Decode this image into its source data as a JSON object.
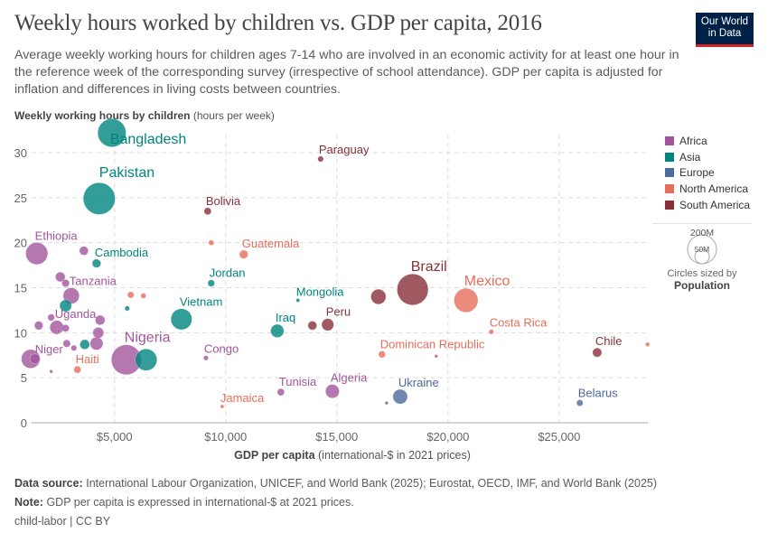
{
  "header": {
    "title": "Weekly hours worked by children vs. GDP per capita, 2016",
    "subtitle": "Average weekly working hours for children ages 7-14 who are involved in an economic activity for at least one hour in the reference week of the corresponding survey (irrespective of school attendance). GDP per capita is adjusted for inflation and differences in living costs between countries.",
    "logo_line1": "Our World",
    "logo_line2": "in Data"
  },
  "footer": {
    "source_label": "Data source:",
    "source_text": "International Labour Organization, UNICEF, and World Bank (2025); Eurostat, OECD, IMF, and World Bank (2025)",
    "note_label": "Note:",
    "note_text": "GDP per capita is expressed in international-$ at 2021 prices.",
    "credit": "child-labor | CC BY"
  },
  "size_legend": {
    "large": "200M",
    "small": "50M",
    "caption": "Circles sized by",
    "variable": "Population"
  },
  "chart_data": {
    "type": "scatter",
    "title": "Weekly hours worked by children vs. GDP per capita, 2016",
    "ylabel_bold": "Weekly working hours by children",
    "ylabel_unit": "(hours per week)",
    "xlabel_bold": "GDP per capita",
    "xlabel_unit": "(international-$ in 2021 prices)",
    "xlim": [
      1270,
      28990
    ],
    "ylim": [
      0,
      30
    ],
    "x_log": false,
    "grid": true,
    "xticks": [
      {
        "v": 5000,
        "label": "$5,000"
      },
      {
        "v": 10000,
        "label": "$10,000"
      },
      {
        "v": 15000,
        "label": "$15,000"
      },
      {
        "v": 20000,
        "label": "$20,000"
      },
      {
        "v": 25000,
        "label": "$25,000"
      }
    ],
    "yticks": [
      {
        "v": 0,
        "label": "0"
      },
      {
        "v": 5,
        "label": "5"
      },
      {
        "v": 10,
        "label": "10"
      },
      {
        "v": 15,
        "label": "15"
      },
      {
        "v": 20,
        "label": "20"
      },
      {
        "v": 25,
        "label": "25"
      },
      {
        "v": 30,
        "label": "30"
      }
    ],
    "legend_position": "right",
    "regions": [
      {
        "name": "Africa",
        "color": "#a2559c"
      },
      {
        "name": "Asia",
        "color": "#00847e"
      },
      {
        "name": "Europe",
        "color": "#4c6a9c"
      },
      {
        "name": "North America",
        "color": "#e56e5a"
      },
      {
        "name": "South America",
        "color": "#883039"
      }
    ],
    "points": [
      {
        "label": "Bangladesh",
        "region": "Asia",
        "x": 4880,
        "y": 32.2,
        "pop": 170
      },
      {
        "label": "Pakistan",
        "region": "Asia",
        "x": 4310,
        "y": 24.9,
        "pop": 215
      },
      {
        "label": "Bolivia",
        "region": "South America",
        "x": 9190,
        "y": 23.5,
        "pop": 11
      },
      {
        "label": "Paraguay",
        "region": "South America",
        "x": 14270,
        "y": 29.3,
        "pop": 7
      },
      {
        "label": "Ethiopia",
        "region": "Africa",
        "x": 1500,
        "y": 18.8,
        "pop": 103
      },
      {
        "label": "Guatemala",
        "region": "North America",
        "x": 10810,
        "y": 18.7,
        "pop": 16
      },
      {
        "label": "",
        "region": "North America",
        "x": 9350,
        "y": 20.0,
        "pop": 6
      },
      {
        "label": "Cambodia",
        "region": "Asia",
        "x": 4190,
        "y": 17.7,
        "pop": 16
      },
      {
        "label": "",
        "region": "Africa",
        "x": 3620,
        "y": 19.1,
        "pop": 17
      },
      {
        "label": "Jordan",
        "region": "Asia",
        "x": 9350,
        "y": 15.5,
        "pop": 10
      },
      {
        "label": "Mongolia",
        "region": "Asia",
        "x": 13250,
        "y": 13.6,
        "pop": 3
      },
      {
        "label": "Tanzania",
        "region": "Africa",
        "x": 3050,
        "y": 14.1,
        "pop": 55
      },
      {
        "label": "",
        "region": "Africa",
        "x": 2560,
        "y": 16.2,
        "pop": 20
      },
      {
        "label": "",
        "region": "Africa",
        "x": 2800,
        "y": 15.5,
        "pop": 12
      },
      {
        "label": "",
        "region": "Asia",
        "x": 2800,
        "y": 13.0,
        "pop": 30
      },
      {
        "label": "",
        "region": "North America",
        "x": 5730,
        "y": 14.2,
        "pop": 9
      },
      {
        "label": "",
        "region": "North America",
        "x": 6300,
        "y": 14.1,
        "pop": 6
      },
      {
        "label": "",
        "region": "Asia",
        "x": 5570,
        "y": 12.7,
        "pop": 5
      },
      {
        "label": "Vietnam",
        "region": "Asia",
        "x": 8010,
        "y": 11.5,
        "pop": 94
      },
      {
        "label": "Iraq",
        "region": "Asia",
        "x": 12320,
        "y": 10.2,
        "pop": 37
      },
      {
        "label": "",
        "region": "South America",
        "x": 13900,
        "y": 10.8,
        "pop": 17
      },
      {
        "label": "Peru",
        "region": "South America",
        "x": 14590,
        "y": 10.9,
        "pop": 31
      },
      {
        "label": "",
        "region": "South America",
        "x": 16870,
        "y": 14.0,
        "pop": 48
      },
      {
        "label": "Brazil",
        "region": "South America",
        "x": 18410,
        "y": 14.8,
        "pop": 206
      },
      {
        "label": "Mexico",
        "region": "North America",
        "x": 20810,
        "y": 13.6,
        "pop": 122
      },
      {
        "label": "Costa Rica",
        "region": "North America",
        "x": 21950,
        "y": 10.1,
        "pop": 5
      },
      {
        "label": "Dominican Republic",
        "region": "North America",
        "x": 17030,
        "y": 7.6,
        "pop": 10
      },
      {
        "label": "",
        "region": "Africa",
        "x": 19470,
        "y": 7.4,
        "pop": 1
      },
      {
        "label": "Chile",
        "region": "South America",
        "x": 26710,
        "y": 7.8,
        "pop": 18
      },
      {
        "label": "",
        "region": "North America",
        "x": 28980,
        "y": 8.7,
        "pop": 4
      },
      {
        "label": "Tunisia",
        "region": "Africa",
        "x": 12480,
        "y": 3.4,
        "pop": 11
      },
      {
        "label": "Algeria",
        "region": "Africa",
        "x": 14800,
        "y": 3.5,
        "pop": 40
      },
      {
        "label": "Ukraine",
        "region": "Europe",
        "x": 17850,
        "y": 2.9,
        "pop": 45
      },
      {
        "label": "",
        "region": "Europe",
        "x": 17240,
        "y": 2.2,
        "pop": 2
      },
      {
        "label": "Belarus",
        "region": "Europe",
        "x": 25930,
        "y": 2.2,
        "pop": 9
      },
      {
        "label": "Jamaica",
        "region": "North America",
        "x": 9840,
        "y": 1.8,
        "pop": 3
      },
      {
        "label": "Congo",
        "region": "Africa",
        "x": 9110,
        "y": 7.2,
        "pop": 5
      },
      {
        "label": "Nigeria",
        "region": "Africa",
        "x": 5530,
        "y": 7.0,
        "pop": 190
      },
      {
        "label": "",
        "region": "Asia",
        "x": 6420,
        "y": 7.0,
        "pop": 100
      },
      {
        "label": "",
        "region": "Africa",
        "x": 1590,
        "y": 10.8,
        "pop": 16
      },
      {
        "label": "",
        "region": "Africa",
        "x": 2150,
        "y": 11.7,
        "pop": 10
      },
      {
        "label": "Uganda",
        "region": "Africa",
        "x": 2400,
        "y": 10.6,
        "pop": 40
      },
      {
        "label": "",
        "region": "Africa",
        "x": 2800,
        "y": 10.5,
        "pop": 11
      },
      {
        "label": "",
        "region": "Africa",
        "x": 2480,
        "y": 10.2,
        "pop": 2
      },
      {
        "label": "",
        "region": "Africa",
        "x": 4350,
        "y": 11.4,
        "pop": 20
      },
      {
        "label": "",
        "region": "Africa",
        "x": 4270,
        "y": 10.0,
        "pop": 25
      },
      {
        "label": "",
        "region": "Africa",
        "x": 4190,
        "y": 8.8,
        "pop": 35
      },
      {
        "label": "",
        "region": "Asia",
        "x": 3660,
        "y": 8.7,
        "pop": 20
      },
      {
        "label": "",
        "region": "Africa",
        "x": 2850,
        "y": 8.8,
        "pop": 12
      },
      {
        "label": "",
        "region": "Africa",
        "x": 3170,
        "y": 8.3,
        "pop": 7
      },
      {
        "label": "",
        "region": "Africa",
        "x": 1230,
        "y": 7.1,
        "pop": 75
      },
      {
        "label": "Niger",
        "region": "Africa",
        "x": 1420,
        "y": 7.1,
        "pop": 21
      },
      {
        "label": "",
        "region": "Africa",
        "x": 2150,
        "y": 5.7,
        "pop": 2
      },
      {
        "label": "Haiti",
        "region": "North America",
        "x": 3330,
        "y": 5.9,
        "pop": 11
      }
    ]
  }
}
